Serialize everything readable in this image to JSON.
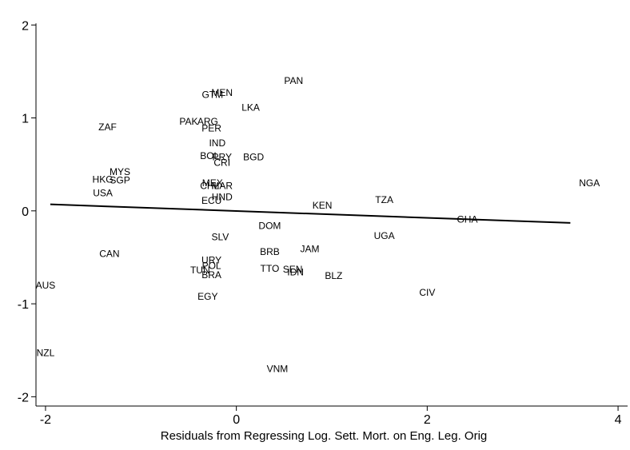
{
  "chart_data": {
    "type": "scatter",
    "title": "",
    "xlabel": "Residuals from Regressing Log. Sett. Mort. on Eng. Leg. Orig",
    "ylabel": "",
    "xlim": [
      -2.1,
      4.1
    ],
    "ylim": [
      -2.1,
      2.2
    ],
    "xticks": [
      -2,
      0,
      2,
      4
    ],
    "yticks": [
      2,
      1,
      0,
      -1,
      -2
    ],
    "grid": false,
    "legend": "none",
    "marker": "country-code-text",
    "points": [
      {
        "label": "PAN",
        "x": 0.6,
        "y": 1.4
      },
      {
        "label": "MEN",
        "x": -0.15,
        "y": 1.27
      },
      {
        "label": "GTM",
        "x": -0.25,
        "y": 1.25
      },
      {
        "label": "LKA",
        "x": 0.15,
        "y": 1.11
      },
      {
        "label": "ZAF",
        "x": -1.35,
        "y": 0.9
      },
      {
        "label": "PAK",
        "x": -0.5,
        "y": 0.96
      },
      {
        "label": "ARG",
        "x": -0.3,
        "y": 0.96
      },
      {
        "label": "PER",
        "x": -0.26,
        "y": 0.89
      },
      {
        "label": "IND",
        "x": -0.2,
        "y": 0.73
      },
      {
        "label": "BOL",
        "x": -0.28,
        "y": 0.59
      },
      {
        "label": "PRY",
        "x": -0.15,
        "y": 0.58
      },
      {
        "label": "CRI",
        "x": -0.15,
        "y": 0.52
      },
      {
        "label": "BGD",
        "x": 0.18,
        "y": 0.58
      },
      {
        "label": "MYS",
        "x": -1.22,
        "y": 0.42
      },
      {
        "label": "HKG",
        "x": -1.4,
        "y": 0.34
      },
      {
        "label": "SGP",
        "x": -1.22,
        "y": 0.33
      },
      {
        "label": "USA",
        "x": -1.4,
        "y": 0.19
      },
      {
        "label": "MEX",
        "x": -0.25,
        "y": 0.3
      },
      {
        "label": "CHL",
        "x": -0.28,
        "y": 0.27
      },
      {
        "label": "MAR",
        "x": -0.15,
        "y": 0.27
      },
      {
        "label": "HND",
        "x": -0.15,
        "y": 0.15
      },
      {
        "label": "ECU",
        "x": -0.26,
        "y": 0.11
      },
      {
        "label": "NGA",
        "x": 3.7,
        "y": 0.3
      },
      {
        "label": "TZA",
        "x": 1.55,
        "y": 0.12
      },
      {
        "label": "KEN",
        "x": 0.9,
        "y": 0.06
      },
      {
        "label": "GHA",
        "x": 2.42,
        "y": -0.09
      },
      {
        "label": "DOM",
        "x": 0.35,
        "y": -0.16
      },
      {
        "label": "SLV",
        "x": -0.17,
        "y": -0.28
      },
      {
        "label": "UGA",
        "x": 1.55,
        "y": -0.27
      },
      {
        "label": "CAN",
        "x": -1.33,
        "y": -0.46
      },
      {
        "label": "JAM",
        "x": 0.77,
        "y": -0.41
      },
      {
        "label": "BRB",
        "x": 0.35,
        "y": -0.44
      },
      {
        "label": "URY",
        "x": -0.26,
        "y": -0.53
      },
      {
        "label": "POL",
        "x": -0.26,
        "y": -0.59
      },
      {
        "label": "TUN",
        "x": -0.38,
        "y": -0.64
      },
      {
        "label": "BRA",
        "x": -0.26,
        "y": -0.69
      },
      {
        "label": "TTO",
        "x": 0.35,
        "y": -0.62
      },
      {
        "label": "SEN",
        "x": 0.59,
        "y": -0.63
      },
      {
        "label": "IDN",
        "x": 0.62,
        "y": -0.66
      },
      {
        "label": "BLZ",
        "x": 1.02,
        "y": -0.7
      },
      {
        "label": "AUS",
        "x": -2.0,
        "y": -0.8
      },
      {
        "label": "EGY",
        "x": -0.3,
        "y": -0.92
      },
      {
        "label": "CIV",
        "x": 2.0,
        "y": -0.88
      },
      {
        "label": "NZL",
        "x": -2.0,
        "y": -1.53
      },
      {
        "label": "VNM",
        "x": 0.43,
        "y": -1.7
      }
    ],
    "fit_line": {
      "x": [
        -1.95,
        3.5
      ],
      "y": [
        0.07,
        -0.13
      ]
    }
  }
}
